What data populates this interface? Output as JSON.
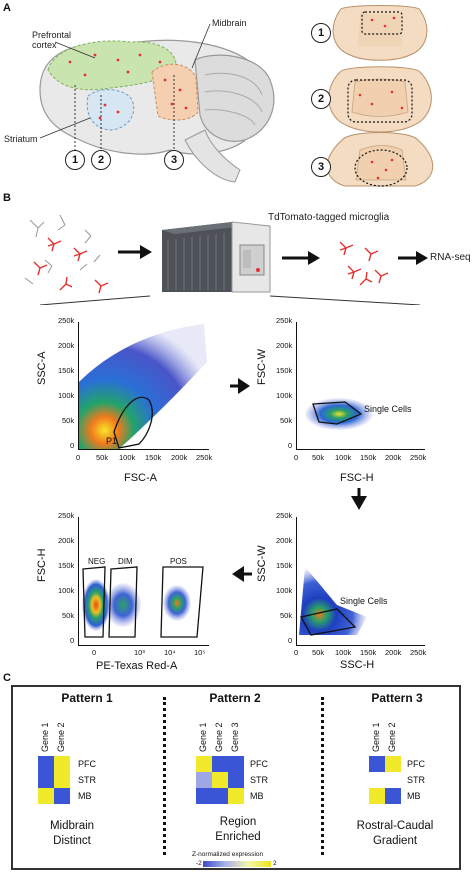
{
  "panelA": {
    "letter": "A",
    "labels": {
      "prefrontal": "Prefrontal\ncortex",
      "midbrain": "Midbrain",
      "striatum": "Striatum"
    },
    "circles": [
      "1",
      "2",
      "3"
    ],
    "section_numbers": [
      "1",
      "2",
      "3"
    ]
  },
  "panelB": {
    "letter": "B",
    "microglia_label": "TdTomato-tagged microglia",
    "rnaseq_label": "RNA-seq",
    "plots": {
      "p1": {
        "ylabel": "SSC-A",
        "xlabel": "FSC-A",
        "gate": "P1",
        "yticks": [
          "250k",
          "200k",
          "150k",
          "100k",
          "50k",
          "0"
        ],
        "xticks": [
          "0",
          "50k",
          "100k",
          "150k",
          "200k",
          "250k"
        ]
      },
      "p2": {
        "ylabel": "FSC-W",
        "xlabel": "FSC-H",
        "gate": "Single Cells",
        "yticks": [
          "250k",
          "200k",
          "150k",
          "100k",
          "50k",
          "0"
        ],
        "xticks": [
          "0",
          "50k",
          "100k",
          "150k",
          "200k",
          "250k"
        ]
      },
      "p3": {
        "ylabel": "SSC-W",
        "xlabel": "SSC-H",
        "gate": "Single Cells",
        "yticks": [
          "250k",
          "200k",
          "150k",
          "100k",
          "50k",
          "0"
        ],
        "xticks": [
          "0",
          "50k",
          "100k",
          "150k",
          "200k",
          "250k"
        ]
      },
      "p4": {
        "ylabel": "FSC-H",
        "xlabel": "PE-Texas Red-A",
        "gates": [
          "NEG",
          "DIM",
          "POS"
        ],
        "yticks": [
          "250k",
          "200k",
          "150k",
          "100k",
          "50k",
          "0"
        ],
        "xticks": [
          "0",
          "10³",
          "10⁴",
          "10⁵"
        ]
      }
    }
  },
  "panelC": {
    "letter": "C",
    "patterns": [
      {
        "title": "Pattern 1",
        "genes": [
          "Gene 1",
          "Gene 2"
        ],
        "rows": [
          "PFC",
          "STR",
          "MB"
        ],
        "desc": [
          "Midbrain",
          "Distinct"
        ],
        "cells": [
          [
            "#3a55d6",
            "#f1ea2a"
          ],
          [
            "#3a55d6",
            "#f1ea2a"
          ],
          [
            "#f1ea2a",
            "#3a55d6"
          ]
        ]
      },
      {
        "title": "Pattern 2",
        "genes": [
          "Gene 1",
          "Gene 2",
          "Gene 3"
        ],
        "rows": [
          "PFC",
          "STR",
          "MB"
        ],
        "desc": [
          "Region",
          "Enriched"
        ],
        "cells": [
          [
            "#f1ea2a",
            "#3a55d6",
            "#3a55d6"
          ],
          [
            "#9ea6e6",
            "#f1ea2a",
            "#3a55d6"
          ],
          [
            "#3a55d6",
            "#3a55d6",
            "#f1ea2a"
          ]
        ]
      },
      {
        "title": "Pattern 3",
        "genes": [
          "Gene 1",
          "Gene 2"
        ],
        "rows": [
          "PFC",
          "STR",
          "MB"
        ],
        "desc": [
          "Rostral-Caudal",
          "Gradient"
        ],
        "cells": [
          [
            "#3a55d6",
            "#f1ea2a"
          ],
          [
            "#ffffff",
            "#ffffff"
          ],
          [
            "#f1ea2a",
            "#3a55d6"
          ]
        ]
      }
    ],
    "colorbar": {
      "title": "Z-normalized expression",
      "min": "-2",
      "max": "2",
      "colors": [
        "#3a4cc8",
        "#aab3ea",
        "#f5f7a8",
        "#e9e21a"
      ]
    }
  }
}
